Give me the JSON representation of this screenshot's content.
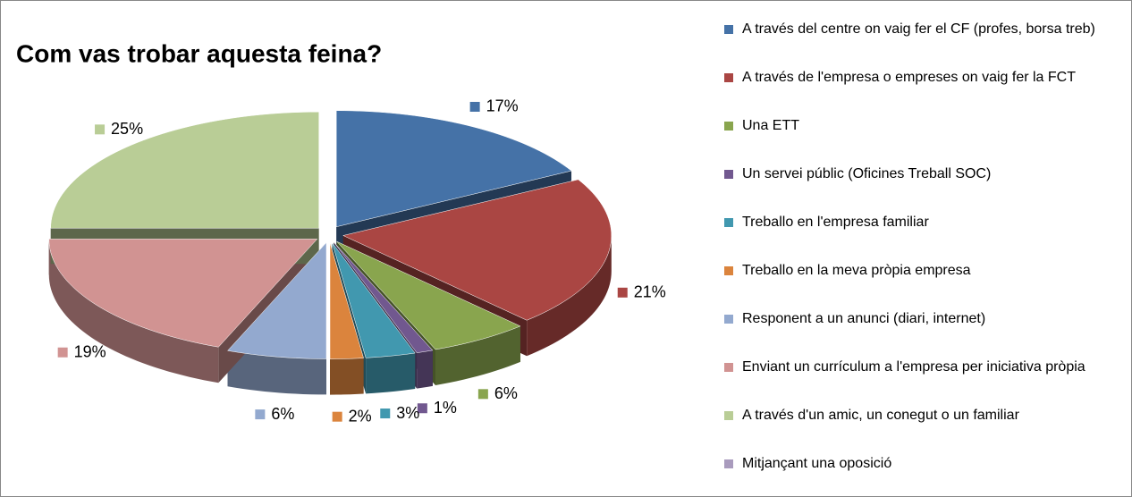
{
  "chart_data": {
    "type": "pie3d",
    "title": "Com vas trobar aquesta feina?",
    "categories": [
      "A través del centre on vaig fer el CF (profes, borsa treb)",
      "A través de l'empresa o empreses on vaig fer la FCT",
      "Una ETT",
      "Un servei públic (Oficines Treball SOC)",
      "Treballo en l'empresa familiar",
      "Treballo en la meva pròpia empresa",
      "Responent a un anunci (diari, internet)",
      "Enviant un currículum a l'empresa per iniciativa pròpia",
      "A través d'un amic, un conegut o un familiar",
      "Mitjançant una oposició"
    ],
    "values": [
      17,
      21,
      6,
      1,
      3,
      2,
      6,
      19,
      25,
      0
    ],
    "value_labels": [
      "17%",
      "21%",
      "6%",
      "1%",
      "3%",
      "2%",
      "6%",
      "19%",
      "25%",
      null
    ],
    "colors": [
      "#4572a7",
      "#aa4643",
      "#89a54e",
      "#71588f",
      "#4198af",
      "#db843d",
      "#93a9cf",
      "#d19392",
      "#b9cd96",
      "#a99bbd"
    ],
    "legend": "right"
  }
}
